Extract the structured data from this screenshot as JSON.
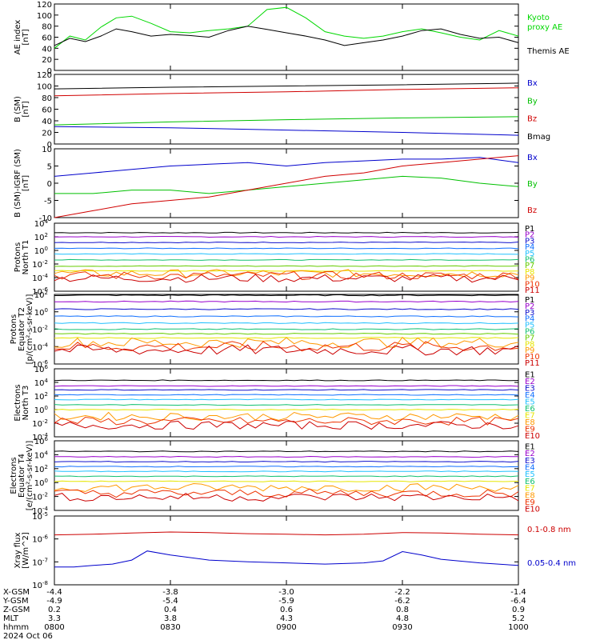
{
  "chart_data": [
    {
      "type": "line",
      "ylabel": [
        "AE index",
        "[nT]"
      ],
      "ylim": [
        0,
        120
      ],
      "yticks": [
        "0",
        "20",
        "40",
        "60",
        "80",
        "100",
        "120"
      ],
      "series": [
        {
          "name": "Kyoto proxy AE",
          "color": "#00d800",
          "x": [
            0,
            4,
            8,
            12,
            16,
            20,
            25,
            30,
            35,
            40,
            45,
            50,
            55,
            60,
            65,
            70,
            75,
            80,
            85,
            90,
            95,
            100,
            105,
            110,
            115,
            120
          ],
          "y": [
            40,
            62,
            55,
            78,
            95,
            98,
            85,
            70,
            68,
            72,
            75,
            80,
            110,
            114,
            95,
            70,
            62,
            58,
            62,
            70,
            75,
            68,
            60,
            55,
            72,
            62
          ]
        },
        {
          "name": "Themis AE",
          "color": "#000000",
          "x": [
            0,
            4,
            8,
            12,
            16,
            20,
            25,
            30,
            35,
            40,
            45,
            50,
            55,
            60,
            65,
            70,
            75,
            80,
            85,
            90,
            95,
            100,
            105,
            110,
            115,
            120
          ],
          "y": [
            45,
            58,
            52,
            62,
            75,
            70,
            62,
            65,
            63,
            60,
            72,
            80,
            74,
            68,
            62,
            55,
            45,
            50,
            55,
            62,
            72,
            75,
            65,
            58,
            60,
            50
          ]
        }
      ]
    },
    {
      "type": "line",
      "ylabel": [
        "B (SM)",
        "[nT]"
      ],
      "ylim": [
        0,
        120
      ],
      "yticks": [
        "0",
        "20",
        "40",
        "60",
        "80",
        "100",
        "120"
      ],
      "series": [
        {
          "name": "Bx",
          "color": "#0000cc",
          "x": [
            0,
            30,
            60,
            90,
            120
          ],
          "y": [
            30,
            28,
            24,
            20,
            15
          ]
        },
        {
          "name": "By",
          "color": "#00c000",
          "x": [
            0,
            30,
            60,
            90,
            120
          ],
          "y": [
            33,
            38,
            42,
            45,
            47
          ]
        },
        {
          "name": "Bz",
          "color": "#d00000",
          "x": [
            0,
            30,
            60,
            90,
            120
          ],
          "y": [
            83,
            87,
            90,
            94,
            97
          ]
        },
        {
          "name": "Bmag",
          "color": "#000000",
          "x": [
            0,
            30,
            60,
            90,
            120
          ],
          "y": [
            95,
            98,
            100,
            102,
            105
          ]
        }
      ]
    },
    {
      "type": "line",
      "ylabel": [
        "B (SM)-IGRF (SM)",
        "[nT]"
      ],
      "ylim": [
        -10,
        10
      ],
      "yticks": [
        "-10",
        "-5",
        "0",
        "5",
        "10"
      ],
      "series": [
        {
          "name": "Bx",
          "color": "#0000cc",
          "x": [
            0,
            10,
            20,
            30,
            40,
            50,
            60,
            70,
            80,
            90,
            100,
            110,
            120
          ],
          "y": [
            2,
            3,
            4,
            5,
            5.5,
            6,
            5,
            6,
            6.5,
            7,
            7,
            7.5,
            6
          ]
        },
        {
          "name": "By",
          "color": "#00c000",
          "x": [
            0,
            10,
            20,
            30,
            40,
            50,
            60,
            70,
            80,
            90,
            100,
            110,
            120
          ],
          "y": [
            -3,
            -3,
            -2,
            -2,
            -3,
            -2,
            -1,
            0,
            1,
            2,
            1.5,
            0,
            -1
          ]
        },
        {
          "name": "Bz",
          "color": "#d00000",
          "x": [
            0,
            10,
            20,
            30,
            40,
            50,
            60,
            70,
            80,
            90,
            100,
            110,
            120
          ],
          "y": [
            -10,
            -8,
            -6,
            -5,
            -4,
            -2,
            0,
            2,
            3,
            5,
            6,
            7,
            8
          ]
        }
      ]
    },
    {
      "type": "line",
      "ylog": true,
      "ylabel": [
        "Protons",
        "North T1"
      ],
      "yticks": [
        "10^-6",
        "10^-4",
        "10^-2",
        "10^0",
        "10^2",
        "10^4"
      ],
      "ymin_exp": -6,
      "ymax_exp": 4,
      "series_labels": [
        "P1",
        "P2",
        "P3",
        "P4",
        "P5",
        "P6",
        "P7",
        "P8",
        "P9",
        "P10",
        "P11"
      ],
      "series_colors": [
        "#000000",
        "#9900cc",
        "#1010cc",
        "#1070ff",
        "#20c0ff",
        "#10c070",
        "#66cc00",
        "#e6e600",
        "#ff9900",
        "#ee3300",
        "#cc0000"
      ],
      "series_values": [
        400,
        100,
        15,
        2,
        0.3,
        0.04,
        0.005,
        0.001,
        0.0004,
        0.0002,
        8e-05
      ]
    },
    {
      "type": "line",
      "ylog": true,
      "ylabel": [
        "Protons",
        "Equator T2",
        "[p/(cm²-s-sr-keV)]"
      ],
      "yticks": [
        "10^-6",
        "10^-4",
        "10^-2",
        "10^0",
        "10^2"
      ],
      "ymin_exp": -6,
      "ymax_exp": 2,
      "series_labels": [
        "P1",
        "P2",
        "P3",
        "P4",
        "P5",
        "P6",
        "P7",
        "P8",
        "P9",
        "P10",
        "P11"
      ],
      "series_colors": [
        "#000000",
        "#9900cc",
        "#1010cc",
        "#1070ff",
        "#20c0ff",
        "#10c070",
        "#66cc00",
        "#e6e600",
        "#ff9900",
        "#ee3300",
        "#cc0000"
      ],
      "series_values": [
        80,
        15,
        2,
        0.3,
        0.05,
        0.01,
        0.003,
        0.001,
        0.0003,
        0.0001,
        4e-05
      ]
    },
    {
      "type": "line",
      "ylog": true,
      "ylabel": [
        "Electrons",
        "North T3"
      ],
      "yticks": [
        "10^-4",
        "10^-2",
        "10^0",
        "10^2",
        "10^4",
        "10^6"
      ],
      "ymin_exp": -4,
      "ymax_exp": 6,
      "series_labels": [
        "E1",
        "E2",
        "E3",
        "E4",
        "E5",
        "E6",
        "E7",
        "E8",
        "E9",
        "E10"
      ],
      "series_colors": [
        "#000000",
        "#9900cc",
        "#1010cc",
        "#1070ff",
        "#20c0ff",
        "#10c070",
        "#e6e600",
        "#ff9900",
        "#ee3300",
        "#cc0000"
      ],
      "series_values": [
        20000,
        3000,
        800,
        150,
        30,
        5,
        1,
        0.1,
        0.02,
        0.005
      ]
    },
    {
      "type": "line",
      "ylog": true,
      "ylabel": [
        "Electrons",
        "Equator T4",
        "[e/(cm²-s-sr-keV)]"
      ],
      "yticks": [
        "10^-4",
        "10^-2",
        "10^0",
        "10^2",
        "10^4",
        "10^6"
      ],
      "ymin_exp": -4,
      "ymax_exp": 6,
      "series_labels": [
        "E1",
        "E2",
        "E3",
        "E4",
        "E5",
        "E6",
        "E7",
        "E8",
        "E9",
        "E10"
      ],
      "series_colors": [
        "#000000",
        "#9900cc",
        "#1010cc",
        "#1070ff",
        "#20c0ff",
        "#10c070",
        "#e6e600",
        "#ff9900",
        "#ee3300",
        "#cc0000"
      ],
      "series_values": [
        30000,
        5000,
        1000,
        200,
        40,
        8,
        1.5,
        0.2,
        0.03,
        0.008
      ]
    },
    {
      "type": "line",
      "ylog": true,
      "ylabel": [
        "Xray flux",
        "[W/m^2]"
      ],
      "yticks": [
        "10^-8",
        "10^-7",
        "10^-6",
        "10^-5"
      ],
      "ymin_exp": -8,
      "ymax_exp": -5,
      "series": [
        {
          "name": "0.1-0.8 nm",
          "color": "#cc0000",
          "x": [
            0,
            10,
            20,
            30,
            40,
            50,
            60,
            70,
            80,
            90,
            100,
            110,
            120
          ],
          "y": [
            1.5e-06,
            1.6e-06,
            1.8e-06,
            2e-06,
            1.9e-06,
            1.7e-06,
            1.6e-06,
            1.5e-06,
            1.6e-06,
            1.9e-06,
            1.8e-06,
            1.6e-06,
            1.5e-06
          ]
        },
        {
          "name": "0.05-0.4 nm",
          "color": "#0000cc",
          "x": [
            0,
            5,
            10,
            15,
            20,
            24,
            30,
            40,
            50,
            60,
            70,
            80,
            85,
            90,
            95,
            100,
            110,
            120
          ],
          "y": [
            6e-08,
            6e-08,
            7e-08,
            8e-08,
            1.2e-07,
            3e-07,
            2e-07,
            1.2e-07,
            1e-07,
            9e-08,
            8e-08,
            9e-08,
            1.1e-07,
            2.8e-07,
            2e-07,
            1.3e-07,
            9e-08,
            7e-08
          ]
        }
      ]
    }
  ],
  "x_axis_rows": [
    {
      "label": "X-GSM",
      "values": [
        "-4.4",
        "-3.8",
        "-3.0",
        "-2.2",
        "-1.4"
      ]
    },
    {
      "label": "Y-GSM",
      "values": [
        "-4.9",
        "-5.4",
        "-5.9",
        "-6.2",
        "-6.4"
      ]
    },
    {
      "label": "Z-GSM",
      "values": [
        "0.2",
        "0.4",
        "0.6",
        "0.8",
        "0.9"
      ]
    },
    {
      "label": "MLT",
      "values": [
        "3.3",
        "3.8",
        "4.3",
        "4.8",
        "5.2"
      ]
    },
    {
      "label": "hhmm",
      "values": [
        "0800",
        "0830",
        "0900",
        "0930",
        "1000"
      ]
    }
  ],
  "date_label": "2024 Oct 06"
}
